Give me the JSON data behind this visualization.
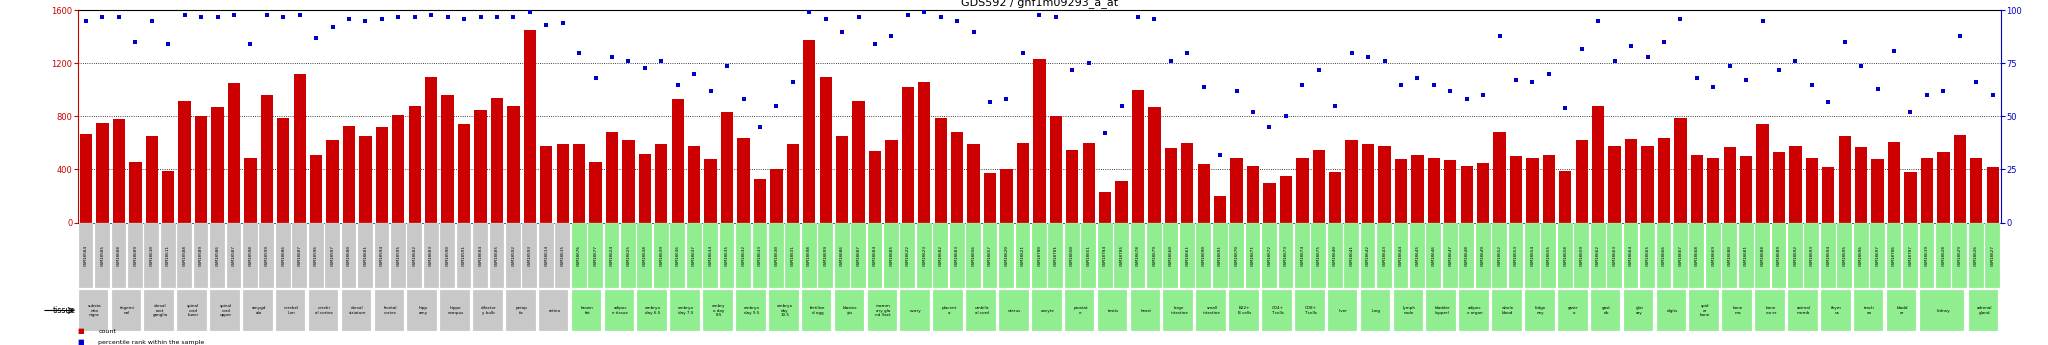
{
  "title": "GDS592 / gnf1m09293_a_at",
  "samples": [
    [
      "GSM18584",
      "substa\nntia\nnigra",
      670,
      95,
      "gray"
    ],
    [
      "GSM18585",
      "",
      750,
      97,
      "gray"
    ],
    [
      "GSM18608",
      "trigemi\nnal",
      780,
      97,
      "gray"
    ],
    [
      "GSM18609",
      "",
      460,
      85,
      "gray"
    ],
    [
      "GSM18610",
      "dorsal\nroot\nganglia",
      650,
      95,
      "gray"
    ],
    [
      "GSM18611",
      "",
      390,
      84,
      "gray"
    ],
    [
      "GSM18588",
      "spinal\ncord\nlower",
      920,
      98,
      "gray"
    ],
    [
      "GSM18589",
      "",
      800,
      97,
      "gray"
    ],
    [
      "GSM18586",
      "spinal\ncord\nupper",
      870,
      97,
      "gray"
    ],
    [
      "GSM18587",
      "",
      1050,
      98,
      "gray"
    ],
    [
      "GSM18598",
      "amygd\nala",
      490,
      84,
      "gray"
    ],
    [
      "GSM18599",
      "",
      960,
      98,
      "gray"
    ],
    [
      "GSM18606",
      "cerebel\nlum",
      790,
      97,
      "gray"
    ],
    [
      "GSM18607",
      "",
      1120,
      98,
      "gray"
    ],
    [
      "GSM18596",
      "cerebr\nal cortex",
      510,
      87,
      "gray"
    ],
    [
      "GSM18597",
      "",
      620,
      92,
      "gray"
    ],
    [
      "GSM18600",
      "dorsal\nstriatum",
      730,
      96,
      "gray"
    ],
    [
      "GSM18601",
      "",
      650,
      95,
      "gray"
    ],
    [
      "GSM18594",
      "frontal\ncortex",
      720,
      96,
      "gray"
    ],
    [
      "GSM18595",
      "",
      810,
      97,
      "gray"
    ],
    [
      "GSM18602",
      "hipp\namy",
      880,
      97,
      "gray"
    ],
    [
      "GSM18603",
      "",
      1100,
      98,
      "gray"
    ],
    [
      "GSM18590",
      "hippo\ncampus",
      960,
      97,
      "gray"
    ],
    [
      "GSM18591",
      "",
      740,
      96,
      "gray"
    ],
    [
      "GSM18604",
      "olfactor\ny bulb",
      850,
      97,
      "gray"
    ],
    [
      "GSM18605",
      "",
      940,
      97,
      "gray"
    ],
    [
      "GSM18592",
      "preop\ntic",
      880,
      97,
      "gray"
    ],
    [
      "GSM18593",
      "",
      1450,
      99,
      "gray"
    ],
    [
      "GSM18614",
      "retina",
      580,
      93,
      "gray"
    ],
    [
      "GSM18615",
      "",
      590,
      94,
      "gray"
    ],
    [
      "GSM18676",
      "brown\nfat",
      590,
      80,
      "green"
    ],
    [
      "GSM18677",
      "",
      460,
      68,
      "green"
    ],
    [
      "GSM18624",
      "adipos\ne tissue",
      680,
      78,
      "green"
    ],
    [
      "GSM18625",
      "",
      620,
      76,
      "green"
    ],
    [
      "GSM18638",
      "embryo\nday 6.5",
      520,
      73,
      "green"
    ],
    [
      "GSM18639",
      "",
      590,
      76,
      "green"
    ],
    [
      "GSM18636",
      "embryo\nday 7.5",
      930,
      65,
      "green"
    ],
    [
      "GSM18637",
      "",
      580,
      70,
      "green"
    ],
    [
      "GSM18634",
      "embry\no day\n8.5",
      480,
      62,
      "green"
    ],
    [
      "GSM18635",
      "",
      830,
      74,
      "green"
    ],
    [
      "GSM18632",
      "embryo\nday 9.5",
      640,
      58,
      "green"
    ],
    [
      "GSM18633",
      "",
      330,
      45,
      "green"
    ],
    [
      "GSM18630",
      "embryo\nday\n10.5",
      400,
      55,
      "green"
    ],
    [
      "GSM18631",
      "",
      590,
      66,
      "green"
    ],
    [
      "GSM18698",
      "fertilize\nd egg",
      1380,
      99,
      "green"
    ],
    [
      "GSM18699",
      "",
      1100,
      96,
      "green"
    ],
    [
      "GSM18686",
      "blastoc\nyts",
      650,
      90,
      "green"
    ],
    [
      "GSM18687",
      "",
      920,
      97,
      "green"
    ],
    [
      "GSM18684",
      "mamm\nary gla\nnd (lact",
      540,
      84,
      "green"
    ],
    [
      "GSM18685",
      "",
      620,
      88,
      "green"
    ],
    [
      "GSM18622",
      "ovary",
      1020,
      98,
      "green"
    ],
    [
      "GSM18623",
      "",
      1060,
      99,
      "green"
    ],
    [
      "GSM18682",
      "placent\na",
      790,
      97,
      "green"
    ],
    [
      "GSM18683",
      "",
      680,
      95,
      "green"
    ],
    [
      "GSM18656",
      "umbilic\nal cord",
      590,
      90,
      "green"
    ],
    [
      "GSM18657",
      "",
      370,
      57,
      "green"
    ],
    [
      "GSM18620",
      "uterus",
      400,
      58,
      "green"
    ],
    [
      "GSM18621",
      "",
      600,
      80,
      "green"
    ],
    [
      "GSM18700",
      "oocyte",
      1230,
      98,
      "green"
    ],
    [
      "GSM18701",
      "",
      800,
      97,
      "green"
    ],
    [
      "GSM18650",
      "prostat\ne",
      550,
      72,
      "green"
    ],
    [
      "GSM18651",
      "",
      600,
      75,
      "green"
    ],
    [
      "GSM18704",
      "testis",
      230,
      42,
      "green"
    ],
    [
      "GSM18705",
      "",
      310,
      55,
      "green"
    ],
    [
      "GSM18678",
      "heart",
      1000,
      97,
      "green"
    ],
    [
      "GSM18679",
      "",
      870,
      96,
      "green"
    ],
    [
      "GSM18660",
      "large\nintestine",
      560,
      76,
      "green"
    ],
    [
      "GSM18661",
      "",
      600,
      80,
      "green"
    ],
    [
      "GSM18690",
      "small\nintestine",
      440,
      64,
      "green"
    ],
    [
      "GSM18691",
      "",
      200,
      32,
      "green"
    ],
    [
      "GSM18670",
      "B22+\nB cells",
      490,
      62,
      "green"
    ],
    [
      "GSM18671",
      "",
      430,
      52,
      "green"
    ],
    [
      "GSM18672",
      "CD4+\nT cells",
      300,
      45,
      "green"
    ],
    [
      "GSM18673",
      "",
      350,
      50,
      "green"
    ],
    [
      "GSM18674",
      "CD8+\nT cells",
      490,
      65,
      "green"
    ],
    [
      "GSM18675",
      "",
      550,
      72,
      "green"
    ],
    [
      "GSM18640",
      "liver",
      380,
      55,
      "green"
    ],
    [
      "GSM18641",
      "",
      620,
      80,
      "green"
    ],
    [
      "GSM18642",
      "lung",
      590,
      78,
      "green"
    ],
    [
      "GSM18643",
      "",
      580,
      76,
      "green"
    ],
    [
      "GSM18644",
      "lymph\nnode",
      480,
      65,
      "green"
    ],
    [
      "GSM18645",
      "",
      510,
      68,
      "green"
    ],
    [
      "GSM18646",
      "bladder\n(upper)",
      490,
      65,
      "green"
    ],
    [
      "GSM18647",
      "",
      470,
      62,
      "green"
    ],
    [
      "GSM18648",
      "adipos\ne organ",
      430,
      58,
      "green"
    ],
    [
      "GSM18649",
      "",
      450,
      60,
      "green"
    ],
    [
      "GSM18652",
      "whole\nblood",
      680,
      88,
      "green"
    ],
    [
      "GSM18653",
      "",
      500,
      67,
      "green"
    ],
    [
      "GSM18654",
      "kidge\nney",
      490,
      66,
      "green"
    ],
    [
      "GSM18655",
      "",
      510,
      70,
      "green"
    ],
    [
      "GSM18658",
      "gastr\no",
      390,
      54,
      "green"
    ],
    [
      "GSM18659",
      "",
      620,
      82,
      "green"
    ],
    [
      "GSM18662",
      "gast\nrib",
      880,
      95,
      "green"
    ],
    [
      "GSM18663",
      "",
      580,
      76,
      "green"
    ],
    [
      "GSM18664",
      "glut\nary",
      630,
      83,
      "green"
    ],
    [
      "GSM18665",
      "",
      580,
      78,
      "green"
    ],
    [
      "GSM18666",
      "digits",
      640,
      85,
      "green"
    ],
    [
      "GSM18667",
      "",
      790,
      96,
      "green"
    ],
    [
      "GSM18668",
      "spid\ner\nbone",
      510,
      68,
      "green"
    ],
    [
      "GSM18669",
      "",
      490,
      64,
      "green"
    ],
    [
      "GSM18680",
      "bone\nma",
      570,
      74,
      "green"
    ],
    [
      "GSM18681",
      "",
      500,
      67,
      "green"
    ],
    [
      "GSM18688",
      "bone\nea er",
      740,
      95,
      "green"
    ],
    [
      "GSM18689",
      "",
      530,
      72,
      "green"
    ],
    [
      "GSM18692",
      "animal\nmemb",
      580,
      76,
      "green"
    ],
    [
      "GSM18693",
      "",
      490,
      65,
      "green"
    ],
    [
      "GSM18694",
      "thym\nus",
      420,
      57,
      "green"
    ],
    [
      "GSM18695",
      "",
      650,
      85,
      "green"
    ],
    [
      "GSM18696",
      "trach\nea",
      570,
      74,
      "green"
    ],
    [
      "GSM18697",
      "",
      480,
      63,
      "green"
    ],
    [
      "GSM18706",
      "bladd\ner",
      610,
      81,
      "green"
    ],
    [
      "GSM18707",
      "",
      380,
      52,
      "green"
    ],
    [
      "GSM18619",
      "kidney",
      490,
      60,
      "green"
    ],
    [
      "GSM18628",
      "",
      530,
      62,
      "green"
    ],
    [
      "GSM18629",
      "",
      660,
      88,
      "green"
    ],
    [
      "GSM18626",
      "adrenal\ngland",
      490,
      66,
      "green"
    ],
    [
      "GSM18627",
      "",
      420,
      60,
      "green"
    ]
  ],
  "bar_color": "#cc0000",
  "dot_color": "#0000cc",
  "gray_bg": "#c8c8c8",
  "green_bg": "#90ee90",
  "ylim_left": [
    0,
    1600
  ],
  "ylim_right": [
    0,
    100
  ],
  "yticks_left": [
    0,
    400,
    800,
    1200,
    1600
  ],
  "yticks_right": [
    0,
    25,
    50,
    75,
    100
  ]
}
